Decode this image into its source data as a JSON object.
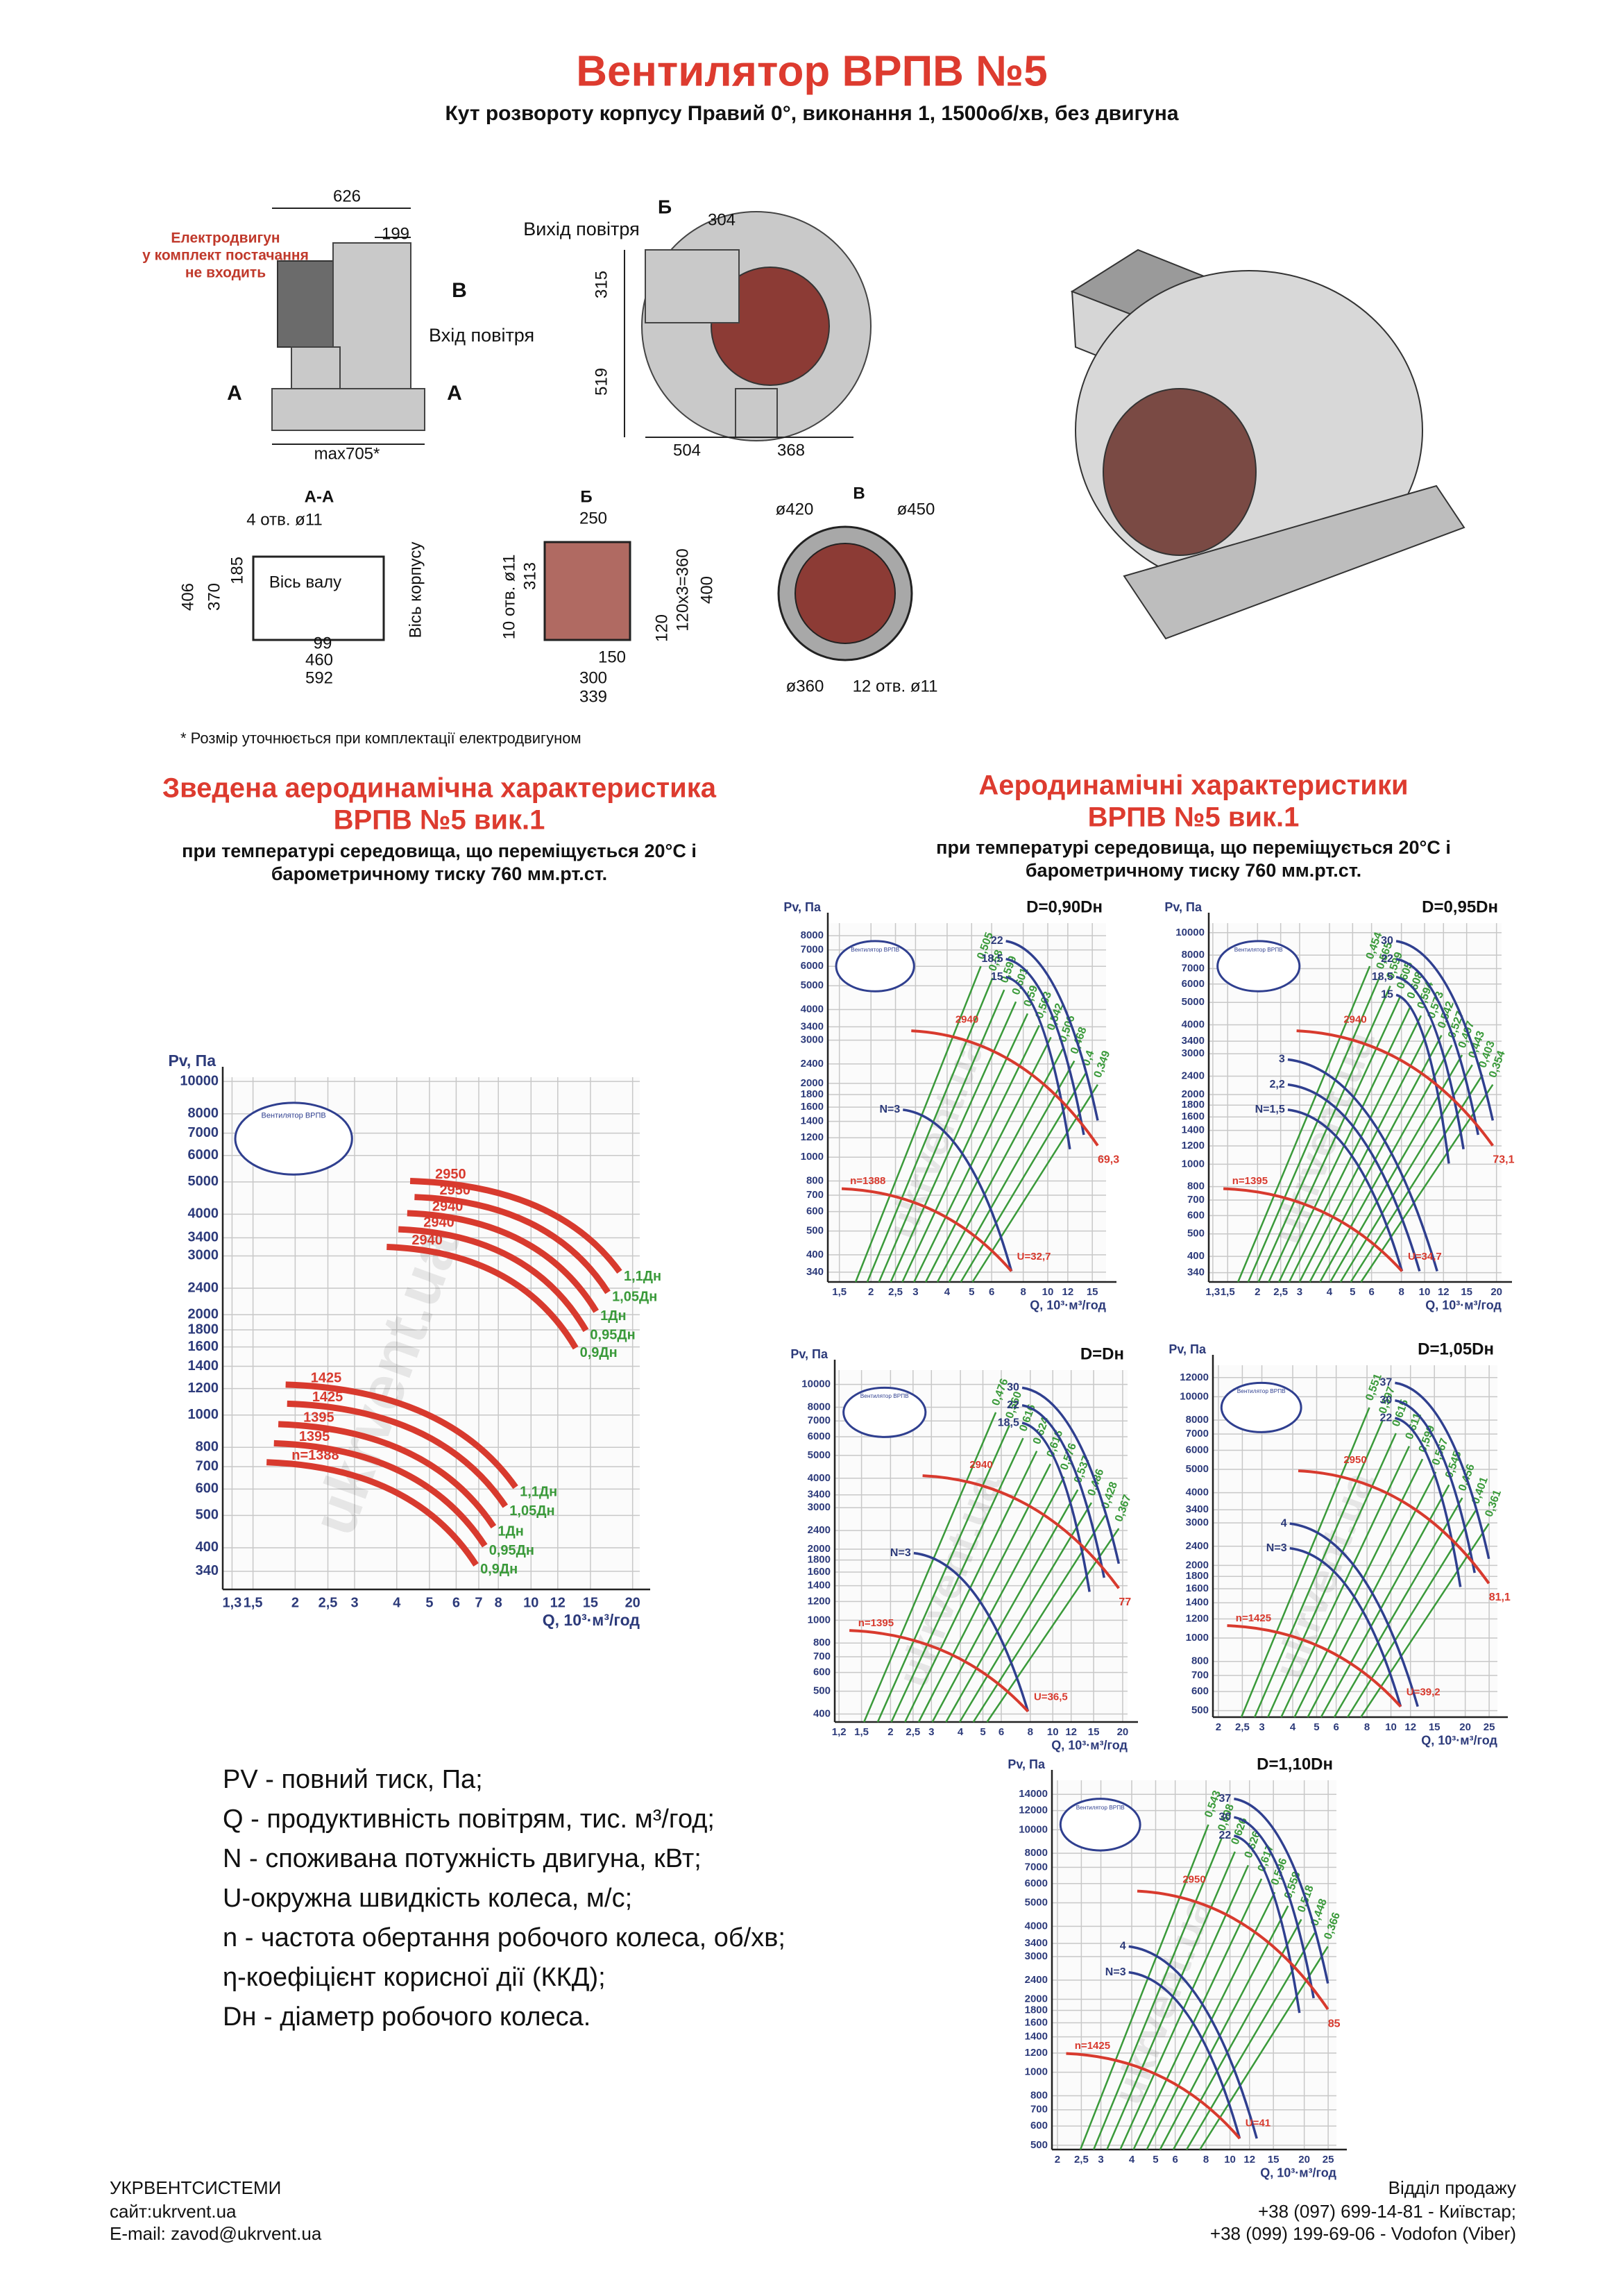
{
  "header": {
    "title": "Вентилятор ВРПВ №5",
    "subtitle": "Кут розвороту корпусу Правий 0°, виконання 1, 1500об/хв, без двигуна"
  },
  "drawings": {
    "side_view": [
      "626",
      "199",
      "Електродвигун",
      "у комплект постачання",
      "не входить",
      "В",
      "Вхід повітря",
      "А",
      "А",
      "max705*"
    ],
    "front_view": [
      "Б",
      "304",
      "Вихід повітря",
      "315",
      "519",
      "504",
      "368"
    ],
    "section_aa": [
      "А-А",
      "4 отв. ø11",
      "406",
      "370",
      "185",
      "Вісь валу",
      "Вісь корпусу",
      "99",
      "460",
      "592"
    ],
    "section_b": [
      "Б",
      "250",
      "10 отв. ø11",
      "313",
      "120x3=360",
      "400",
      "120",
      "150",
      "300",
      "339"
    ],
    "section_v": [
      "В",
      "ø420",
      "ø450",
      "ø360",
      "12 отв. ø11"
    ],
    "footnote": "* Розмір уточнюється при комплектації електродвигуном",
    "watermark": "ukrvent.ua"
  },
  "summary": {
    "title": [
      "Зведена аеродинамічна характеристика",
      "ВРПВ №5 вик.1"
    ],
    "conditions": [
      "при температурі середовища, що переміщується 20°С і",
      "барометричному тиску 760 мм.рт.ст."
    ],
    "chart": {
      "logo": "Вентилятор ВРПВ",
      "y_label": "Pv, Па",
      "x_label": "Q, 10³·м³/год",
      "xlim": [
        1.22,
        21
      ],
      "ylim": [
        300,
        10300
      ],
      "xticks": [
        {
          "value": 1.3,
          "label": "1,3"
        },
        {
          "value": 1.5,
          "label": "1,5"
        },
        2,
        {
          "value": 2.5,
          "label": "2,5"
        },
        3,
        4,
        5,
        6,
        7,
        8,
        10,
        12,
        15,
        20
      ],
      "yticks": [
        340,
        400,
        500,
        600,
        700,
        800,
        1000,
        1200,
        1400,
        1600,
        1800,
        2000,
        2400,
        3000,
        3400,
        4000,
        5000,
        6000,
        7000,
        8000,
        10000
      ],
      "speed_labels": [
        "2950",
        "2950",
        "2940",
        "2940",
        "2940",
        "1425",
        "1425",
        "1395",
        "1395",
        "n=1388"
      ],
      "diameter_labels": [
        "1,1Дн",
        "1,05Дн",
        "1Дн",
        "0,95Дн",
        "0,9Дн",
        "1,1Дн",
        "1,05Дн",
        "1Дн",
        "0,95Дн",
        "0,9Дн"
      ]
    }
  },
  "individual": {
    "title": [
      "Аеродинамічні характеристики",
      "ВРПВ №5 вик.1"
    ],
    "conditions": [
      "при температурі середовища, що переміщується 20°С і",
      "барометричному тиску 760 мм.рт.ст."
    ],
    "charts": [
      {
        "title": "D=0,90Dн",
        "logo": "Вентилятор ВРПВ",
        "y_label": "Pv, Па",
        "x_label": "Q, 10³·м³/год",
        "xlim": [
          1.35,
          17
        ],
        "ylim": [
          310,
          9000
        ],
        "xticks": [
          {
            "value": 1.5,
            "label": "1,5"
          },
          2,
          {
            "value": 2.5,
            "label": "2,5"
          },
          3,
          4,
          5,
          6,
          8,
          10,
          12,
          15
        ],
        "yticks": [
          340,
          400,
          500,
          600,
          700,
          800,
          1000,
          1200,
          1400,
          1600,
          1800,
          2000,
          2400,
          3000,
          3400,
          4000,
          5000,
          6000,
          7000,
          8000
        ],
        "power_labels_high": [
          "22",
          "18,5",
          "15"
        ],
        "power_labels_low": [
          "N=3"
        ],
        "speed_label": "2940",
        "rated_speed_label": "n=1388",
        "end_label": "69,3",
        "speed_end_label": "U=32,7",
        "efficiency_labels": [
          "0,505",
          "0,58",
          "0,599",
          "0,601",
          "0,59",
          "0,563",
          "0,542",
          "0,506",
          "0,468",
          "0,4",
          "0,349"
        ]
      },
      {
        "title": "D=0,95Dн",
        "logo": "Вентилятор ВРПВ",
        "y_label": "Pv, Па",
        "x_label": "Q, 10³·м³/год",
        "xlim": [
          1.25,
          21
        ],
        "ylim": [
          310,
          11000
        ],
        "xticks": [
          {
            "value": 1.3,
            "label": "1,3"
          },
          {
            "value": 1.5,
            "label": "1,5"
          },
          2,
          {
            "value": 2.5,
            "label": "2,5"
          },
          3,
          4,
          5,
          6,
          8,
          10,
          12,
          15,
          20
        ],
        "yticks": [
          340,
          400,
          500,
          600,
          700,
          800,
          1000,
          1200,
          1400,
          1600,
          1800,
          2000,
          2400,
          3000,
          3400,
          4000,
          5000,
          6000,
          7000,
          8000,
          10000
        ],
        "power_labels_high": [
          "30",
          "22",
          "18,5",
          "15"
        ],
        "power_labels_low": [
          "3",
          "2,2",
          "N=1,5"
        ],
        "speed_label": "2940",
        "rated_speed_label": "n=1395",
        "end_label": "73,1",
        "speed_end_label": "U=34,7",
        "efficiency_labels": [
          "0,454",
          "0,565",
          "0,599",
          "0,605",
          "0,608",
          "0,594",
          "0,573",
          "0,542",
          "0,527",
          "0,497",
          "0,443",
          "0,403",
          "0,354"
        ]
      },
      {
        "title": "D=Dн",
        "logo": "Вентилятор ВРПВ",
        "y_label": "Pv, Па",
        "x_label": "Q, 10³·м³/год",
        "xlim": [
          1.15,
          21
        ],
        "ylim": [
          370,
          11500
        ],
        "xticks": [
          {
            "value": 1.2,
            "label": "1,2"
          },
          {
            "value": 1.5,
            "label": "1,5"
          },
          2,
          {
            "value": 2.5,
            "label": "2,5"
          },
          3,
          4,
          5,
          6,
          8,
          10,
          12,
          15,
          20
        ],
        "yticks": [
          400,
          500,
          600,
          700,
          800,
          1000,
          1200,
          1400,
          1600,
          1800,
          2000,
          2400,
          3000,
          3400,
          4000,
          5000,
          6000,
          7000,
          8000,
          10000
        ],
        "power_labels_high": [
          "30",
          "22",
          "18,5"
        ],
        "power_labels_low": [
          "N=3"
        ],
        "speed_label": "2940",
        "rated_speed_label": "n=1395",
        "end_label": "77",
        "speed_end_label": "U=36,5",
        "efficiency_labels": [
          "0,476",
          "0,560",
          "0,616",
          "0,624",
          "0,616",
          "0,576",
          "0,537",
          "0,486",
          "0,428",
          "0,367"
        ]
      },
      {
        "title": "D=1,05Dн",
        "logo": "Вентилятор ВРПВ",
        "y_label": "Pv, Па",
        "x_label": "Q, 10³·м³/год",
        "xlim": [
          1.9,
          27
        ],
        "ylim": [
          470,
          13500
        ],
        "xticks": [
          2,
          {
            "value": 2.5,
            "label": "2,5"
          },
          3,
          4,
          5,
          6,
          8,
          10,
          12,
          15,
          20,
          25
        ],
        "yticks": [
          500,
          600,
          700,
          800,
          1000,
          1200,
          1400,
          1600,
          1800,
          2000,
          2400,
          3000,
          3400,
          4000,
          5000,
          6000,
          7000,
          8000,
          10000,
          12000
        ],
        "power_labels_high": [
          "37",
          "30",
          "22"
        ],
        "power_labels_low": [
          "4",
          "N=3"
        ],
        "speed_label": "2950",
        "rated_speed_label": "n=1425",
        "end_label": "81,1",
        "speed_end_label": "U=39,2",
        "efficiency_labels": [
          "0,551",
          "0,597",
          "0,615",
          "0,611",
          "0,599",
          "0,567",
          "0,545",
          "0,456",
          "0,401",
          "0,361"
        ]
      },
      {
        "title": "D=1,10Dн",
        "logo": "Вентилятор ВРПВ",
        "y_label": "Pv, Па",
        "x_label": "Q, 10³·м³/год",
        "xlim": [
          1.9,
          27
        ],
        "ylim": [
          480,
          16000
        ],
        "xticks": [
          2,
          {
            "value": 2.5,
            "label": "2,5"
          },
          3,
          4,
          5,
          6,
          8,
          10,
          12,
          15,
          20,
          25
        ],
        "yticks": [
          500,
          600,
          700,
          800,
          1000,
          1200,
          1400,
          1600,
          1800,
          2000,
          2400,
          3000,
          3400,
          4000,
          5000,
          6000,
          7000,
          8000,
          10000,
          12000,
          14000
        ],
        "power_labels_high": [
          "37",
          "30",
          "22"
        ],
        "power_labels_low": [
          "4",
          "N=3"
        ],
        "speed_label": "2950",
        "rated_speed_label": "n=1425",
        "end_label": "85",
        "speed_end_label": "U=41",
        "efficiency_labels": [
          "0,543",
          "0,608",
          "0,626",
          "0,626",
          "0,617",
          "0,596",
          "0,558",
          "0,518",
          "0,448",
          "0,366"
        ]
      }
    ]
  },
  "legend": [
    "PV - повний тиск, Па;",
    "Q - продуктивність повітрям, тис. м³/год;",
    "N - споживана потужність двигуна, кВт;",
    "U-окружна швидкість колеса, м/с;",
    "n - частота обертання робочого колеса, об/хв;",
    "η-коефіцієнт корисної дії (ККД);",
    "Dн - діаметр робочого колеса."
  ],
  "footer": {
    "company": [
      "УКРВЕНТСИСТЕМИ",
      "сайт:ukrvent.ua",
      "E-mail: zavod@ukrvent.ua"
    ],
    "sales": [
      "Відділ продажу",
      "+38 (097) 699-14-81 - Київстар;",
      "+38 (099) 199-69-06 - Vodofon (Viber)"
    ]
  }
}
